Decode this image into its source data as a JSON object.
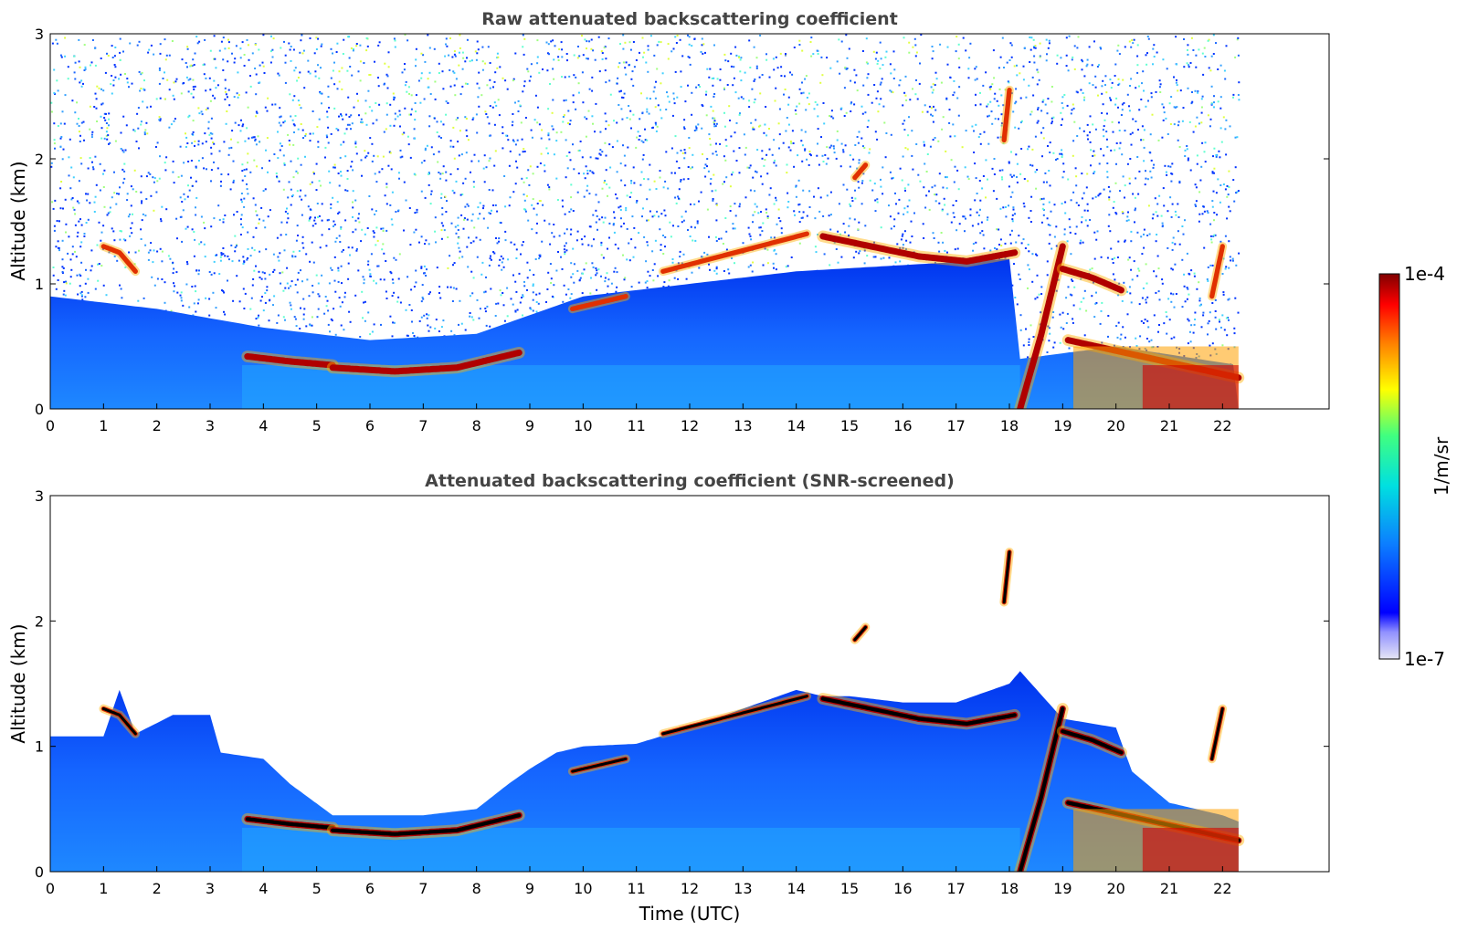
{
  "chart_data": [
    {
      "type": "heatmap",
      "title": "Raw attenuated backscattering coefficient",
      "xlabel": "",
      "ylabel": "Altitude (km)",
      "xlim": [
        0,
        24
      ],
      "ylim": [
        0,
        3
      ],
      "x_ticks": [
        "0",
        "1",
        "2",
        "3",
        "4",
        "5",
        "6",
        "7",
        "8",
        "9",
        "10",
        "11",
        "12",
        "13",
        "14",
        "15",
        "16",
        "17",
        "18",
        "19",
        "20",
        "21",
        "22"
      ],
      "y_ticks": [
        "0",
        "1",
        "2",
        "3"
      ],
      "data_end_hour": 22.3,
      "noise_floor_km": 0.45,
      "cloud_layers": [
        {
          "hours": [
            1.0,
            1.6
          ],
          "altitude_km": [
            1.3,
            1.25,
            1.1
          ],
          "strength": "moderate"
        },
        {
          "hours": [
            3.7,
            5.3
          ],
          "altitude_km": [
            0.42,
            0.38,
            0.35
          ],
          "strength": "strong"
        },
        {
          "hours": [
            5.3,
            8.8
          ],
          "altitude_km": [
            0.33,
            0.3,
            0.33,
            0.45
          ],
          "strength": "strong"
        },
        {
          "hours": [
            9.8,
            10.8
          ],
          "altitude_km": [
            0.8,
            0.85,
            0.9
          ],
          "strength": "moderate"
        },
        {
          "hours": [
            11.5,
            14.2
          ],
          "altitude_km": [
            1.1,
            1.2,
            1.3,
            1.4
          ],
          "strength": "moderate"
        },
        {
          "hours": [
            14.5,
            18.1
          ],
          "altitude_km": [
            1.38,
            1.3,
            1.22,
            1.18,
            1.25
          ],
          "strength": "strong"
        },
        {
          "hours": [
            15.1,
            15.3
          ],
          "altitude_km": [
            1.85,
            1.95
          ],
          "strength": "moderate"
        },
        {
          "hours": [
            17.9,
            18.0
          ],
          "altitude_km": [
            2.15,
            2.55
          ],
          "strength": "moderate"
        },
        {
          "hours": [
            18.2,
            19.0
          ],
          "altitude_km": [
            0.0,
            0.6,
            1.3
          ],
          "strength": "strong"
        },
        {
          "hours": [
            19.0,
            20.1
          ],
          "altitude_km": [
            1.12,
            1.05,
            0.95
          ],
          "strength": "strong"
        },
        {
          "hours": [
            19.1,
            22.3
          ],
          "altitude_km": [
            0.55,
            0.45,
            0.35,
            0.25
          ],
          "strength": "strong"
        },
        {
          "hours": [
            21.8,
            22.0
          ],
          "altitude_km": [
            0.9,
            1.3
          ],
          "strength": "moderate"
        }
      ]
    },
    {
      "type": "heatmap",
      "title": "Attenuated backscattering coefficient (SNR-screened)",
      "xlabel": "Time (UTC)",
      "ylabel": "Altitude (km)",
      "xlim": [
        0,
        24
      ],
      "ylim": [
        0,
        3
      ],
      "x_ticks": [
        "0",
        "1",
        "2",
        "3",
        "4",
        "5",
        "6",
        "7",
        "8",
        "9",
        "10",
        "11",
        "12",
        "13",
        "14",
        "15",
        "16",
        "17",
        "18",
        "19",
        "20",
        "21",
        "22"
      ],
      "y_ticks": [
        "0",
        "1",
        "2",
        "3"
      ],
      "data_end_hour": 22.3,
      "screened_boundary": {
        "hours": [
          0.0,
          1.0,
          1.3,
          1.6,
          2.3,
          3.0,
          3.2,
          4.0,
          4.5,
          5.3,
          6.0,
          7.0,
          8.0,
          8.6,
          9.0,
          9.5,
          10.0,
          11.0,
          12.0,
          13.0,
          14.0,
          14.5,
          15.0,
          16.0,
          17.0,
          18.0,
          18.2,
          19.0,
          20.0,
          20.3,
          21.0,
          22.0,
          22.3
        ],
        "altitude_km": [
          1.08,
          1.08,
          1.45,
          1.1,
          1.25,
          1.25,
          0.95,
          0.9,
          0.7,
          0.45,
          0.45,
          0.45,
          0.5,
          0.7,
          0.82,
          0.95,
          1.0,
          1.02,
          1.15,
          1.3,
          1.45,
          1.4,
          1.4,
          1.35,
          1.35,
          1.5,
          1.6,
          1.22,
          1.15,
          0.8,
          0.55,
          0.45,
          0.4
        ]
      },
      "cloud_layers": "same as panel 1, rendered with black cloud-base cores"
    }
  ],
  "colorbar": {
    "label": "1/m/sr",
    "max_label": "1e-4",
    "min_label": "1e-7",
    "scale": "log",
    "range": [
      1e-07,
      0.0001
    ],
    "colormap": [
      "#e6e6f6",
      "#0000ff",
      "#0c7fff",
      "#00e0e0",
      "#40ff80",
      "#ffff00",
      "#ff8000",
      "#ff0000",
      "#800000"
    ]
  }
}
